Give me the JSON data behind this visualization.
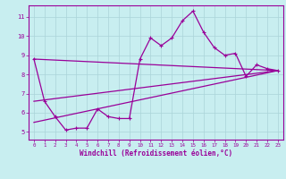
{
  "bg_color": "#c8eef0",
  "grid_color": "#aad4d8",
  "line_color": "#990099",
  "xlabel": "Windchill (Refroidissement éolien,°C)",
  "ylabel_ticks": [
    5,
    6,
    7,
    8,
    9,
    10,
    11
  ],
  "xticks": [
    0,
    1,
    2,
    3,
    4,
    5,
    6,
    7,
    8,
    9,
    10,
    11,
    12,
    13,
    14,
    15,
    16,
    17,
    18,
    19,
    20,
    21,
    22,
    23
  ],
  "xlim": [
    -0.5,
    23.5
  ],
  "ylim": [
    4.6,
    11.6
  ],
  "series1_x": [
    0,
    1,
    2,
    3,
    4,
    5,
    6,
    7,
    8,
    9,
    10,
    11,
    12,
    13,
    14,
    15,
    16,
    17,
    18,
    19,
    20,
    21,
    22,
    23
  ],
  "series1_y": [
    8.8,
    6.6,
    5.8,
    5.1,
    5.2,
    5.2,
    6.2,
    5.8,
    5.7,
    5.7,
    8.8,
    9.9,
    9.5,
    9.9,
    10.8,
    11.3,
    10.2,
    9.4,
    9.0,
    9.1,
    7.9,
    8.5,
    8.3,
    8.2
  ],
  "series2_x": [
    0,
    23
  ],
  "series2_y": [
    6.6,
    8.2
  ],
  "series3_x": [
    0,
    23
  ],
  "series3_y": [
    8.8,
    8.2
  ],
  "series4_x": [
    0,
    23
  ],
  "series4_y": [
    5.5,
    8.2
  ]
}
